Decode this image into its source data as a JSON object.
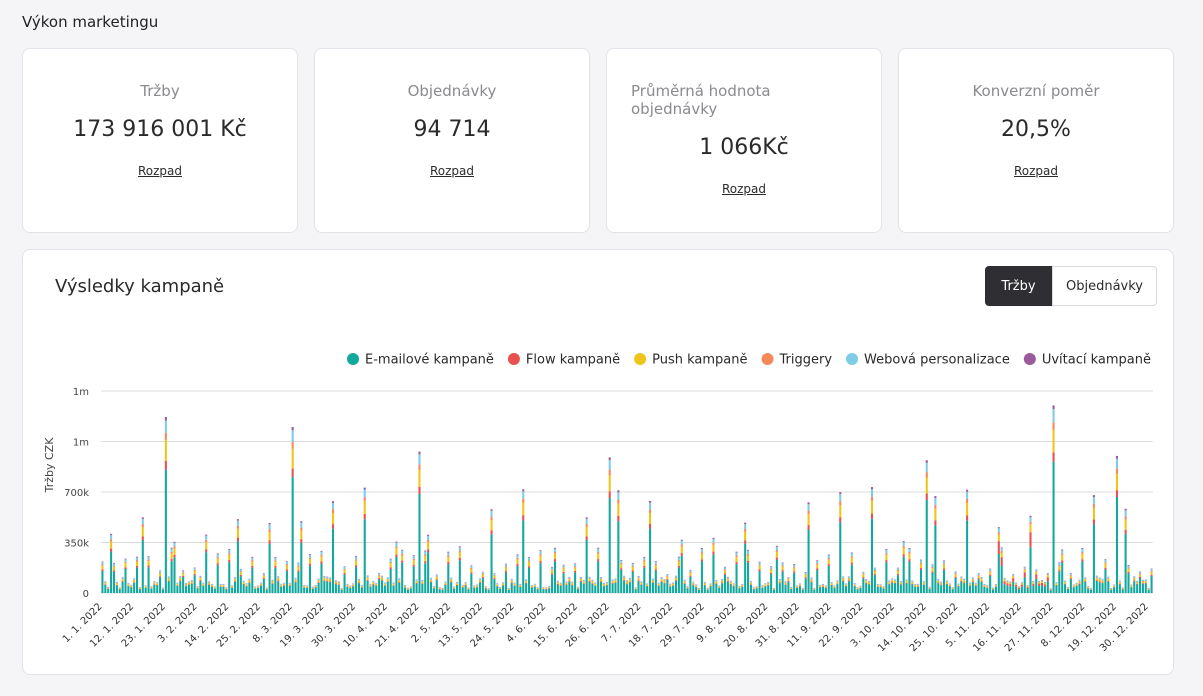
{
  "page": {
    "title": "Výkon marketingu"
  },
  "kpis": [
    {
      "label": "Tržby",
      "value": "173 916 001 Kč",
      "link": "Rozpad"
    },
    {
      "label": "Objednávky",
      "value": "94 714",
      "link": "Rozpad"
    },
    {
      "label": "Průměrná hodnota objednávky",
      "value": "1 066Kč",
      "link": "Rozpad"
    },
    {
      "label": "Konverzní poměr",
      "value": "20,5%",
      "link": "Rozpad"
    }
  ],
  "campaign": {
    "title": "Výsledky kampaně",
    "toggle": {
      "active": "Tržby",
      "inactive": "Objednávky"
    }
  },
  "colors": {
    "email": "#13a89e",
    "flow": "#e8514f",
    "push": "#f0c419",
    "triggers": "#f5895a",
    "web": "#7ecce6",
    "welcome": "#9b5a9b"
  },
  "chart_data": {
    "type": "bar",
    "stacked": true,
    "ylabel": "Tržby CZK",
    "y_ticks": [
      "0",
      "350k",
      "700k",
      "1m",
      "1m"
    ],
    "ylim": [
      0,
      1400000
    ],
    "legend": [
      "E-mailové kampaně",
      "Flow kampaně",
      "Push kampaně",
      "Triggery",
      "Webová personalizace",
      "Uvítací kampaně"
    ],
    "legend_position": "top-right",
    "x_tick_labels": [
      "1. 1. 2022",
      "12. 1. 2022",
      "23. 1. 2022",
      "3. 2. 2022",
      "14. 2. 2022",
      "25. 2. 2022",
      "8. 3. 2022",
      "19. 3. 2022",
      "30. 3. 2022",
      "10. 4. 2022",
      "21. 4. 2022",
      "2. 5. 2022",
      "13. 5. 2022",
      "24. 5. 2022",
      "4. 6. 2022",
      "15. 6. 2022",
      "26. 6. 2022",
      "7. 7. 2022",
      "18. 7. 2022",
      "29. 7. 2022",
      "9. 8. 2022",
      "20. 8. 2022",
      "31. 8. 2022",
      "11. 9. 2022",
      "22. 9. 2022",
      "3. 10. 2022",
      "14. 10. 2022",
      "25. 10. 2022",
      "5. 11. 2022",
      "16. 11. 2022",
      "27. 11. 2022",
      "8. 12. 2022",
      "19. 12. 2022",
      "30. 12. 2022"
    ],
    "x_range": [
      "1. 1. 2022",
      "31. 12. 2022"
    ],
    "days": 365,
    "grid": true,
    "peaks": [
      {
        "date": "23. 1. 2022",
        "value": 1220000
      },
      {
        "date": "8. 3. 2022",
        "value": 1150000
      },
      {
        "date": "21. 4. 2022",
        "value": 980000
      },
      {
        "date": "26. 6. 2022",
        "value": 940000
      },
      {
        "date": "14. 10. 2022",
        "value": 920000
      },
      {
        "date": "27. 11. 2022",
        "value": 1300000
      },
      {
        "date": "19. 12. 2022",
        "value": 950000
      }
    ]
  }
}
